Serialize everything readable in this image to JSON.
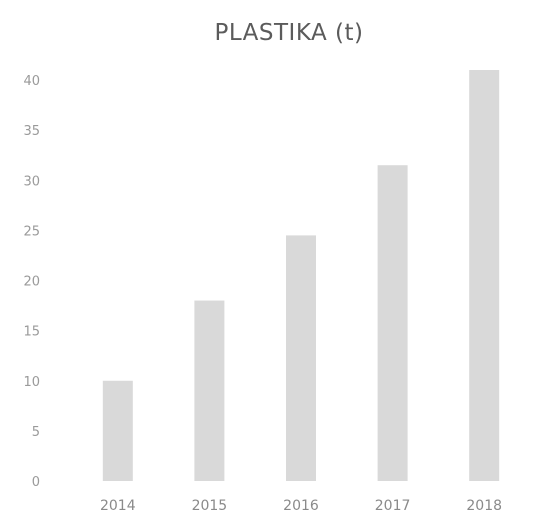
{
  "chart_data": {
    "type": "bar",
    "title": "PLASTIKA (t)",
    "xlabel": "",
    "ylabel": "",
    "categories": [
      "2014",
      "2015",
      "2016",
      "2017",
      "2018"
    ],
    "values": [
      10,
      18,
      24.5,
      31.5,
      41
    ],
    "ylim": [
      0,
      40
    ],
    "yticks": [
      "0",
      "5",
      "10",
      "15",
      "20",
      "25",
      "30",
      "35",
      "40"
    ],
    "grid": false,
    "legend": "none",
    "bar_color": "#d9d9d9"
  }
}
